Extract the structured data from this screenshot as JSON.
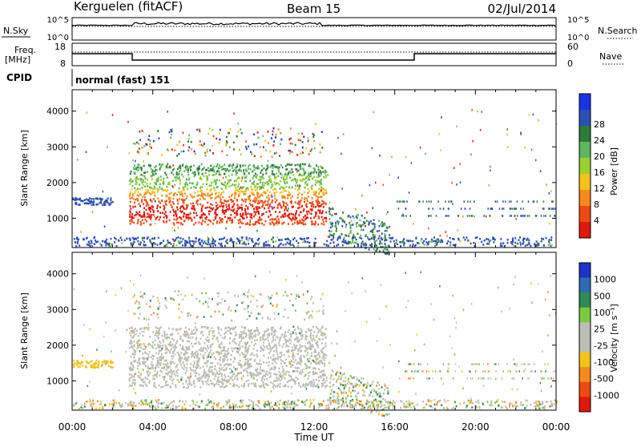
{
  "header": {
    "station": "Kerguelen (fitACF)",
    "beam": "Beam 15",
    "date": "02/Jul/2014"
  },
  "strip": {
    "nsky_label": "N.Sky",
    "nsky_ticks": [
      "10^5",
      "10^0"
    ],
    "nsearch_label": "N.Search",
    "nsearch_ticks": [
      "10^5",
      "10^0"
    ],
    "freq_label_1": "Freq.",
    "freq_label_2": "[MHz]",
    "freq_ticks": [
      "18",
      "8"
    ],
    "nave_label": "Nave",
    "nave_ticks": [
      "60",
      "0"
    ],
    "cpid_label": "CPID",
    "cpid_text": "normal (fast) 151"
  },
  "x_ticks": [
    "00:00",
    "04:00",
    "08:00",
    "12:00",
    "16:00",
    "20:00",
    "00:00"
  ],
  "xlabel": "Time UT",
  "chart_data": [
    {
      "type": "heatmap",
      "title": "",
      "xlabel": "Time UT",
      "ylabel": "Slant Range [km]",
      "xlim": [
        0,
        24
      ],
      "ylim": [
        180,
        4600
      ],
      "y_ticks": [
        "1000",
        "2000",
        "3000",
        "4000"
      ],
      "y_tick_values": [
        1000,
        2000,
        3000,
        4000
      ],
      "colorbar": {
        "label": "Power [dB]",
        "ticks": [
          "4",
          "8",
          "12",
          "16",
          "20",
          "24",
          "28"
        ],
        "colors": [
          "#1a33e6",
          "#2b4fb5",
          "#2e7a3a",
          "#5cb85c",
          "#9bd12e",
          "#f2c318",
          "#f58a1a",
          "#f04a14",
          "#e3180c"
        ]
      }
    },
    {
      "type": "heatmap",
      "title": "",
      "xlabel": "Time UT",
      "ylabel": "Slant Range [km]",
      "xlim": [
        0,
        24
      ],
      "ylim": [
        180,
        4600
      ],
      "y_ticks": [
        "1000",
        "2000",
        "3000",
        "4000"
      ],
      "y_tick_values": [
        1000,
        2000,
        3000,
        4000
      ],
      "colorbar": {
        "label": "Velocity [m s⁻¹]",
        "ticks": [
          "1000",
          "500",
          "100",
          "25",
          "-25",
          "-100",
          "-500",
          "-1000"
        ],
        "colors": [
          "#1a33c8",
          "#2f6ab3",
          "#2e8a56",
          "#7ac943",
          "#bdbdb5",
          "#bdbdb5",
          "#f2c318",
          "#f58a1a",
          "#f04a14",
          "#e3180c"
        ]
      }
    }
  ]
}
